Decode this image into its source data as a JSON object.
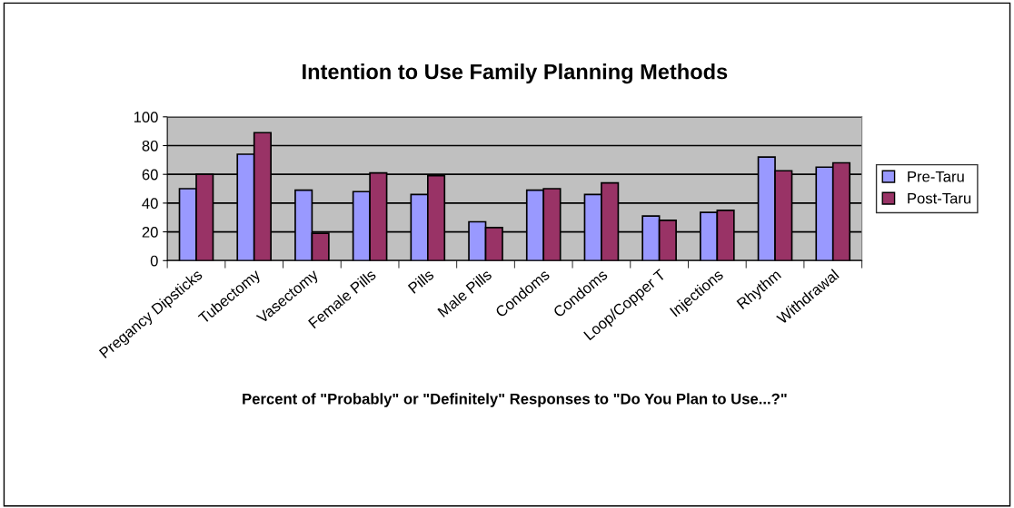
{
  "chart_data": {
    "type": "bar",
    "title": "Intention to Use Family Planning Methods",
    "xlabel": "Percent of \"Probably\" or \"Definitely\" Responses to \"Do You Plan to Use...?\"",
    "categories": [
      "Pregancy Dipsticks",
      "Tubectomy",
      "Vasectomy",
      "Female Pills",
      "Pills",
      "Male Pills",
      "Condoms",
      "Condoms",
      "Loop/Copper T",
      "Injections",
      "Rhythm",
      "Withdrawal"
    ],
    "series": [
      {
        "name": "Pre-Taru",
        "color": "#9999ff",
        "values": [
          50,
          74,
          49,
          48,
          46,
          27,
          49,
          46,
          31,
          33.5,
          72,
          65
        ]
      },
      {
        "name": "Post-Taru",
        "color": "#993366",
        "values": [
          60,
          89,
          19,
          61,
          59,
          23,
          50,
          54,
          28,
          35,
          62.5,
          68
        ]
      }
    ],
    "ylim": [
      0,
      100
    ],
    "yticks": [
      0,
      20,
      40,
      60,
      80,
      100
    ],
    "grid": "y",
    "legend": "right"
  }
}
